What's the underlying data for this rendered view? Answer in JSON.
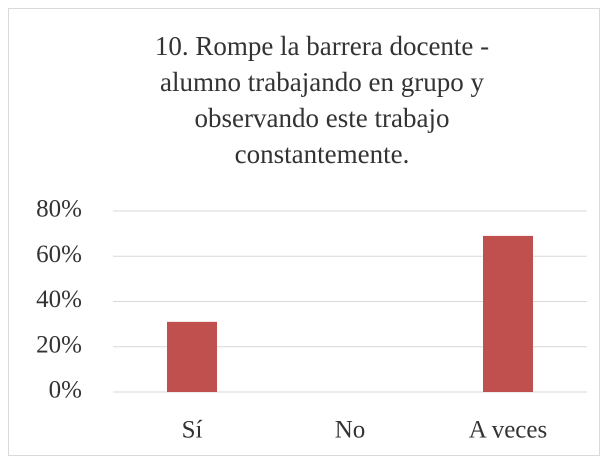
{
  "chart_data": {
    "type": "bar",
    "title": "10. Rompe la barrera docente - alumno trabajando en grupo y observando este trabajo constantemente.",
    "categories": [
      "Sí",
      "No",
      "A veces"
    ],
    "values": [
      31,
      0,
      69
    ],
    "color": "#c0504d",
    "ylim": [
      0,
      80
    ],
    "yticks": [
      {
        "value": 0,
        "label": "0%"
      },
      {
        "value": 20,
        "label": "20%"
      },
      {
        "value": 40,
        "label": "40%"
      },
      {
        "value": 60,
        "label": "60%"
      },
      {
        "value": 80,
        "label": "80%"
      }
    ],
    "grid": true
  }
}
